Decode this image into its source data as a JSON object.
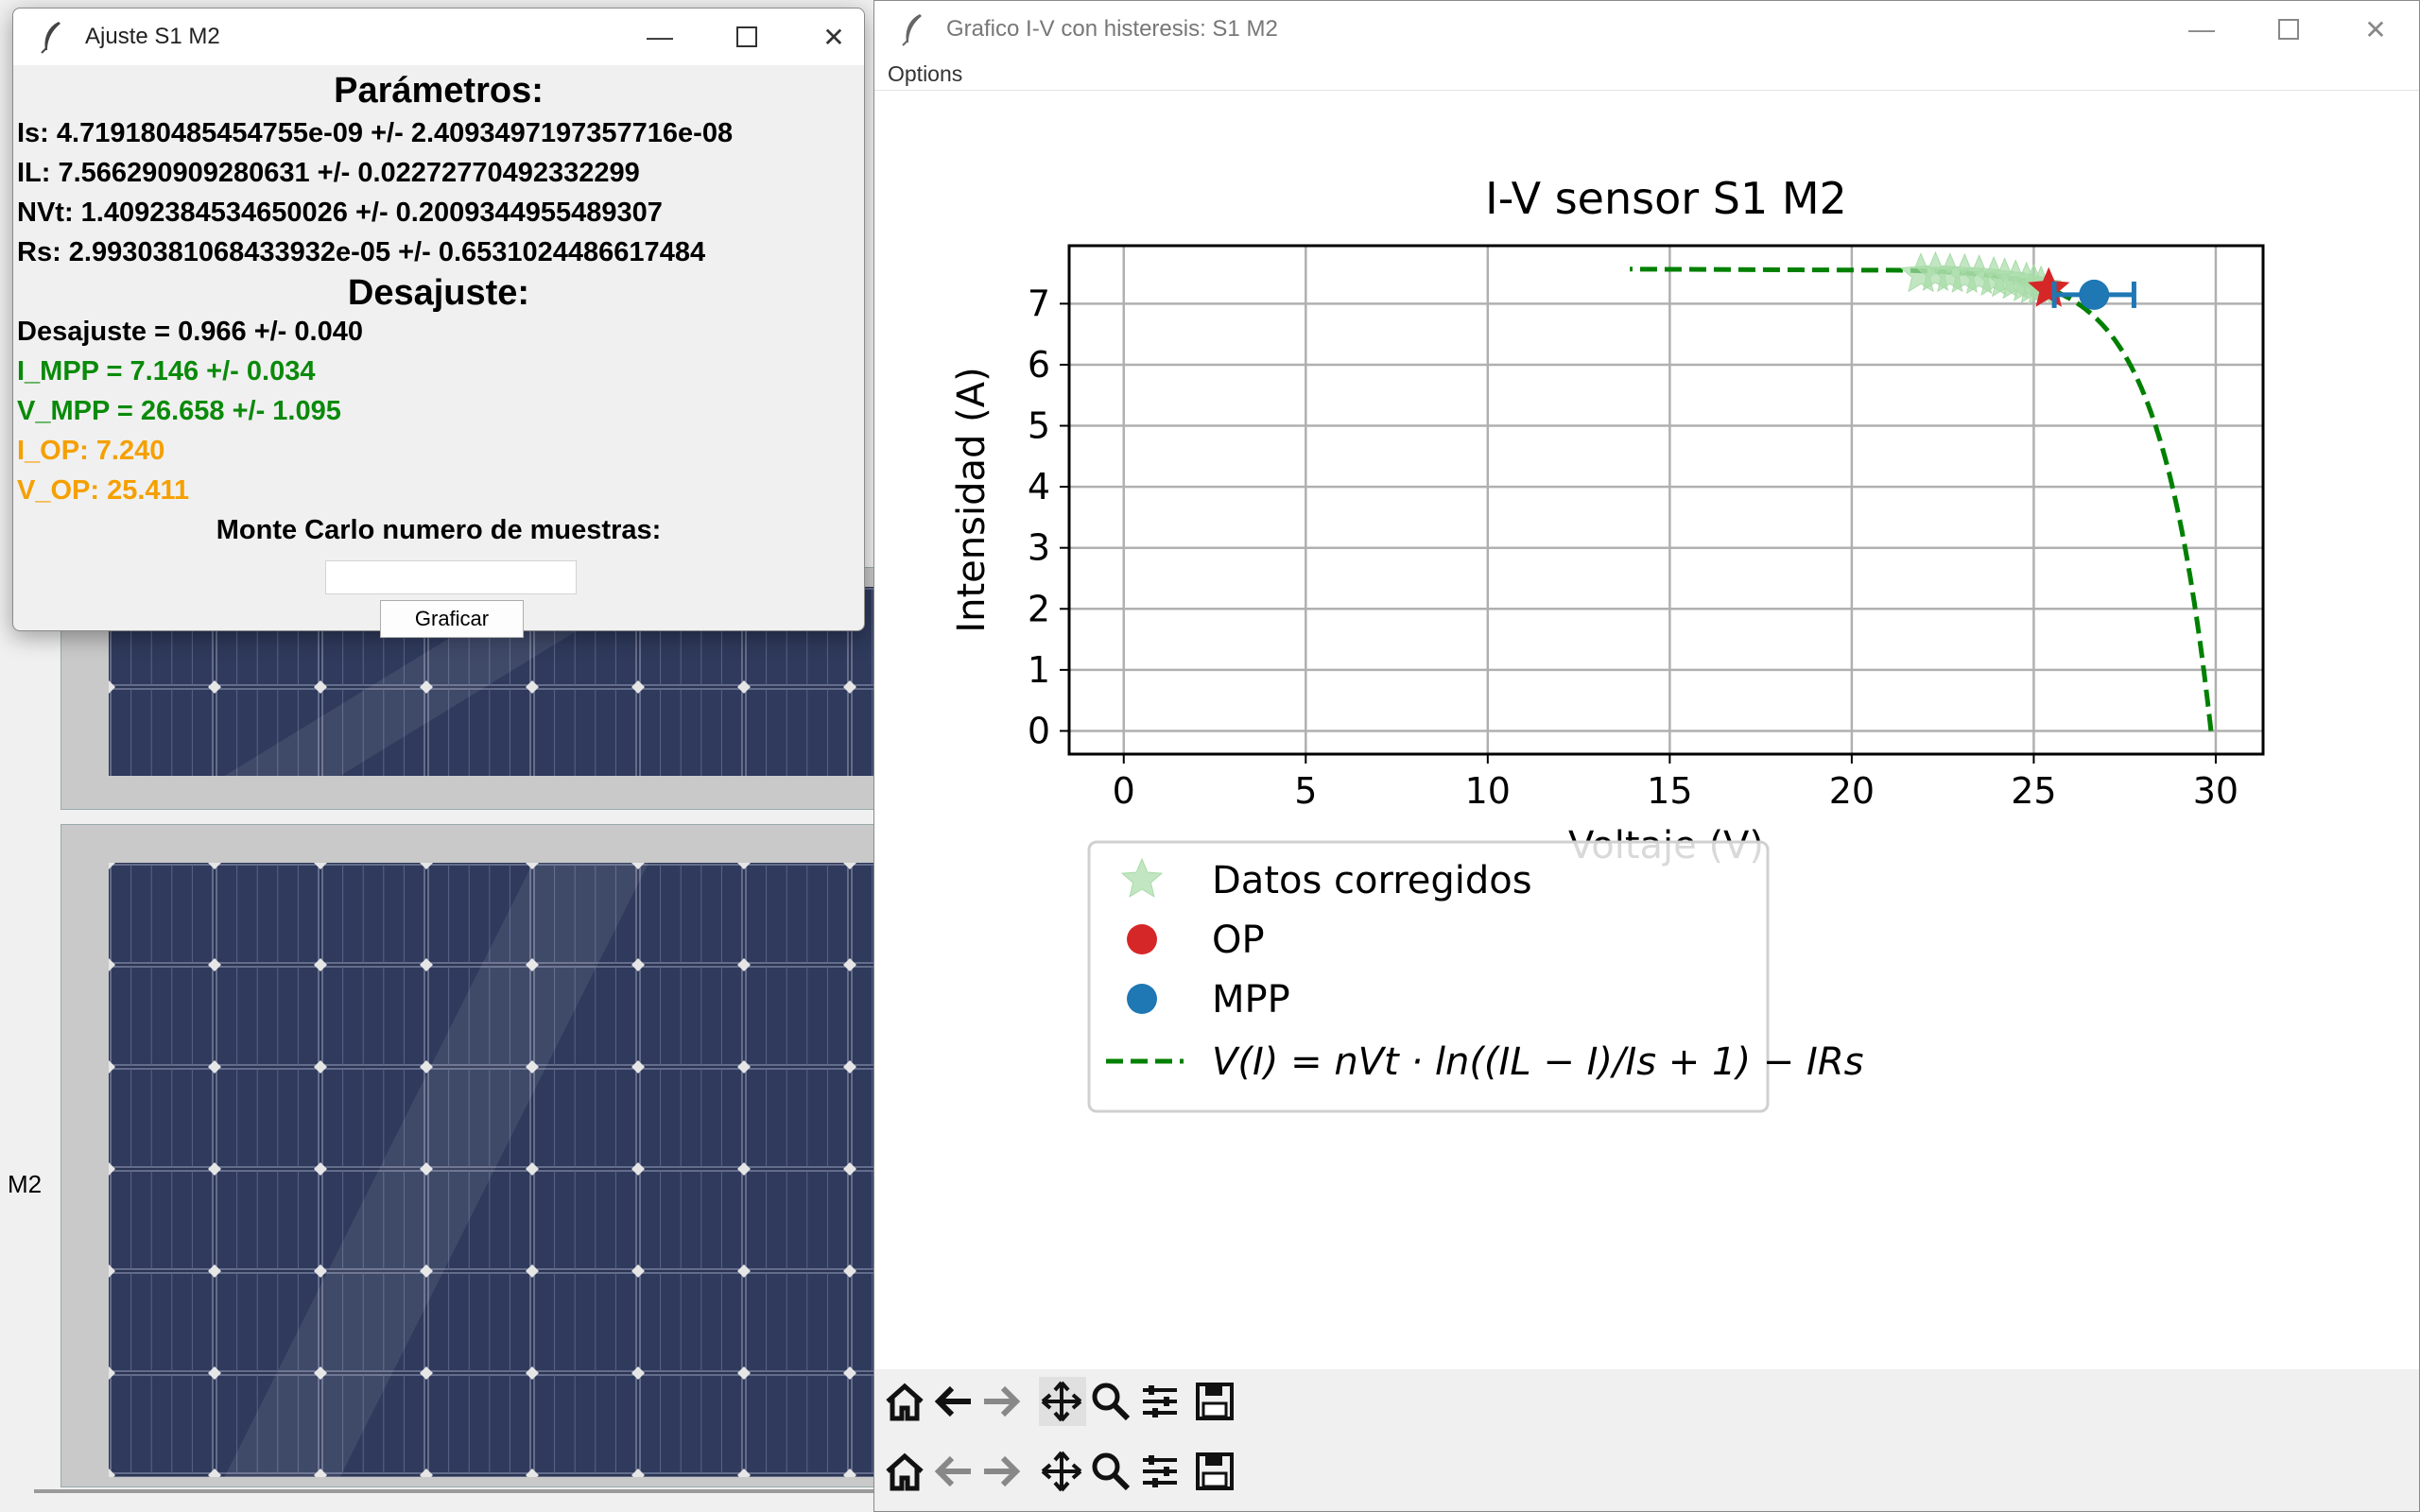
{
  "background_app": {
    "side_label": "M2"
  },
  "fit_window": {
    "title": "Ajuste S1 M2",
    "parametros_heading": "Parámetros:",
    "params": [
      "Is: 4.719180485454755e-09 +/- 2.4093497197357716e-08",
      "IL: 7.566290909280631 +/- 0.02272770492332299",
      "NVt: 1.4092384534650026 +/- 0.2009344955489307",
      "Rs: 2.9930381068433932e-05 +/- 0.6531024486617484"
    ],
    "desajuste_heading": "Desajuste:",
    "desajuste": "Desajuste = 0.966 +/- 0.040",
    "i_mpp": "I_MPP = 7.146 +/- 0.034",
    "v_mpp": "V_MPP = 26.658 +/- 1.095",
    "i_op": "I_OP: 7.240",
    "v_op": "V_OP: 25.411",
    "mc_label": "Monte Carlo numero de muestras:",
    "mc_value": "",
    "graficar_label": "Graficar"
  },
  "plot_window": {
    "title": "Grafico I-V con histeresis: S1 M2",
    "menu_options": "Options"
  },
  "colors": {
    "green_text": "#0a8a0a",
    "orange_text": "#f5a000",
    "curve": "#008000",
    "op": "#d62728",
    "mpp": "#1f77b4",
    "stars": "#a8dba8"
  },
  "chart_data": {
    "type": "line",
    "title": "I-V sensor S1 M2",
    "xlabel": "Voltaje (V)",
    "ylabel": "Intensidad (A)",
    "xlim": [
      -1.5,
      31.3
    ],
    "ylim": [
      -0.38,
      7.95
    ],
    "xticks": [
      0,
      5,
      10,
      15,
      20,
      25,
      30
    ],
    "yticks": [
      0,
      1,
      2,
      3,
      4,
      5,
      6,
      7
    ],
    "grid": true,
    "legend_position": "lower-left",
    "legend": [
      "Datos corregidos",
      "OP",
      "MPP",
      "V(I) = nVt · ln((IL − I)/Is + 1) − IRs"
    ],
    "model": {
      "Is": 4.719180485454755e-09,
      "IL": 7.566290909280631,
      "NVt": 1.4092384534650026,
      "Rs": 2.9930381068433932e-05
    },
    "stars": [
      [
        21.9,
        7.48
      ],
      [
        22.3,
        7.5
      ],
      [
        22.7,
        7.48
      ],
      [
        23.1,
        7.47
      ],
      [
        23.5,
        7.45
      ],
      [
        23.9,
        7.42
      ],
      [
        24.2,
        7.4
      ],
      [
        24.5,
        7.37
      ],
      [
        24.8,
        7.33
      ],
      [
        25.0,
        7.3
      ],
      [
        25.2,
        7.27
      ]
    ],
    "op": {
      "x": 25.411,
      "y": 7.24
    },
    "mpp": {
      "x": 26.658,
      "y": 7.146,
      "xerr": 1.095,
      "yerr": 0.034
    }
  }
}
